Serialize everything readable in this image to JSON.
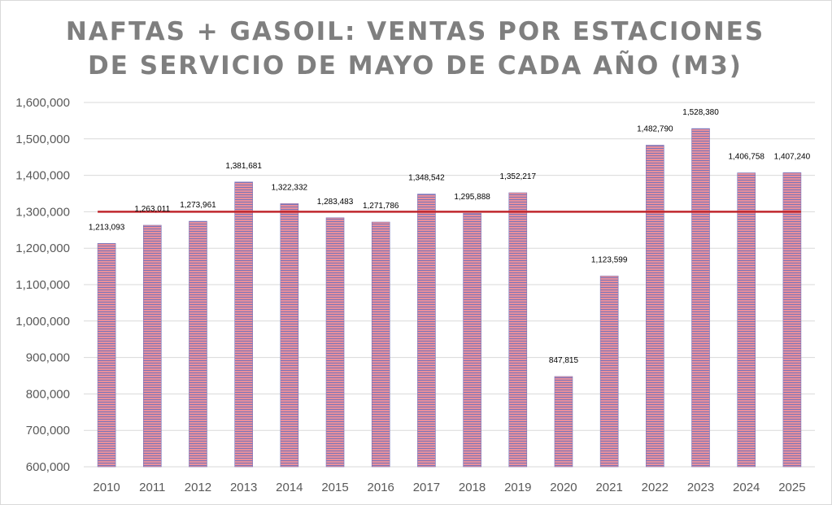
{
  "chart_data": {
    "type": "bar",
    "title_lines": [
      "NAFTAS + GASOIL: VENTAS POR ESTACIONES",
      "DE SERVICIO DE MAYO DE CADA AÑO (M3)"
    ],
    "xlabel": "",
    "ylabel": "",
    "categories": [
      "2010",
      "2011",
      "2012",
      "2013",
      "2014",
      "2015",
      "2016",
      "2017",
      "2018",
      "2019",
      "2020",
      "2021",
      "2022",
      "2023",
      "2024",
      "2025"
    ],
    "values": [
      1213093,
      1263011,
      1273961,
      1381681,
      1322332,
      1283483,
      1271786,
      1348542,
      1295888,
      1352217,
      847815,
      1123599,
      1482790,
      1528380,
      1406758,
      1407240
    ],
    "data_labels": [
      "1,213,093",
      "1,263,011",
      "1,273,961",
      "1,381,681",
      "1,322,332",
      "1,283,483",
      "1,271,786",
      "1,348,542",
      "1,295,888",
      "1,352,217",
      "847,815",
      "1,123,599",
      "1,482,790",
      "1,528,380",
      "1,406,758",
      "1,407,240"
    ],
    "ylim": [
      600000,
      1600000
    ],
    "y_ticks": [
      600000,
      700000,
      800000,
      900000,
      1000000,
      1100000,
      1200000,
      1300000,
      1400000,
      1500000,
      1600000
    ],
    "y_tick_labels": [
      "600,000",
      "700,000",
      "800,000",
      "900,000",
      "1,000,000",
      "1,100,000",
      "1,200,000",
      "1,300,000",
      "1,400,000",
      "1,500,000",
      "1,600,000"
    ],
    "reference_line": 1300000,
    "grid": true,
    "legend": "none",
    "colors": {
      "bar_fill": "#e8909c",
      "bar_stripe": "#7b74b8",
      "reference_line": "#c0272d",
      "grid": "#d9d9d9",
      "title": "#7f7f7f",
      "tick_label": "#595959"
    }
  }
}
